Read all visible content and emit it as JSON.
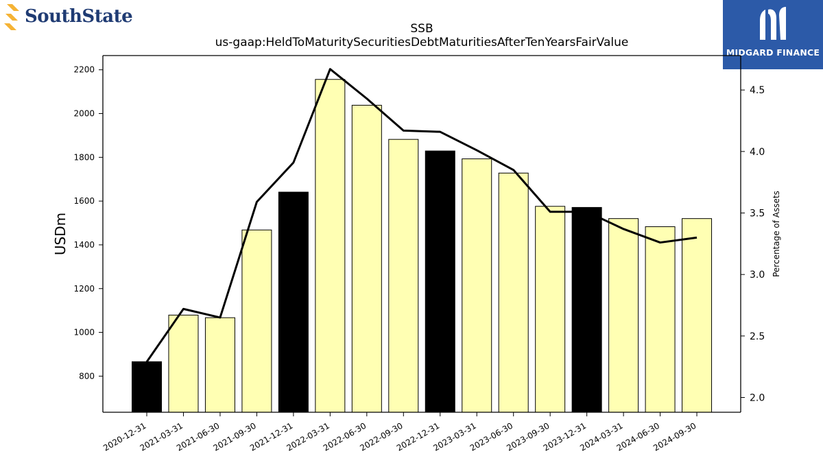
{
  "header": {
    "left_logo_text": "SouthState",
    "right_logo_text": "MIDGARD FINANCE"
  },
  "colors": {
    "highlight_bar": "#000000",
    "regular_bar": "#ffffb3",
    "line": "#000000",
    "right_logo_bg": "#2c5aa8",
    "left_logo_accent": "#f5b335",
    "left_logo_text": "#1f3b73"
  },
  "chart_data": {
    "type": "bar",
    "title": "SSB",
    "subtitle": "us-gaap:HeldToMaturitySecuritiesDebtMaturitiesAfterTenYearsFairValue",
    "ylabel": "USDm",
    "y2label": "Percentage of Assets",
    "categories": [
      "2020-12-31",
      "2021-03-31",
      "2021-06-30",
      "2021-09-30",
      "2021-12-31",
      "2022-03-31",
      "2022-06-30",
      "2022-09-30",
      "2022-12-31",
      "2023-03-31",
      "2023-06-30",
      "2023-09-30",
      "2023-12-31",
      "2024-03-31",
      "2024-06-30",
      "2024-09-30"
    ],
    "series": [
      {
        "type": "bar",
        "values": [
          866,
          1079,
          1067,
          1468,
          1641,
          2156,
          2038,
          1882,
          1829,
          1793,
          1728,
          1576,
          1571,
          1520,
          1483,
          1520
        ],
        "highlighted": [
          true,
          false,
          false,
          false,
          true,
          false,
          false,
          false,
          true,
          false,
          false,
          false,
          true,
          false,
          false,
          false
        ]
      },
      {
        "type": "line",
        "axis": "right",
        "values": [
          2.29,
          2.72,
          2.65,
          3.59,
          3.91,
          4.67,
          4.43,
          4.17,
          4.16,
          4.01,
          3.85,
          3.51,
          3.51,
          3.37,
          3.26,
          3.3
        ]
      }
    ],
    "ylim": [
      635,
      2265
    ],
    "y2lim": [
      1.88,
      4.78
    ],
    "yticks": [
      800,
      1000,
      1200,
      1400,
      1600,
      1800,
      2000,
      2200
    ],
    "y2ticks": [
      "2.0",
      "2.5",
      "3.0",
      "3.5",
      "4.0",
      "4.5"
    ],
    "grid": false,
    "legend": "none"
  }
}
